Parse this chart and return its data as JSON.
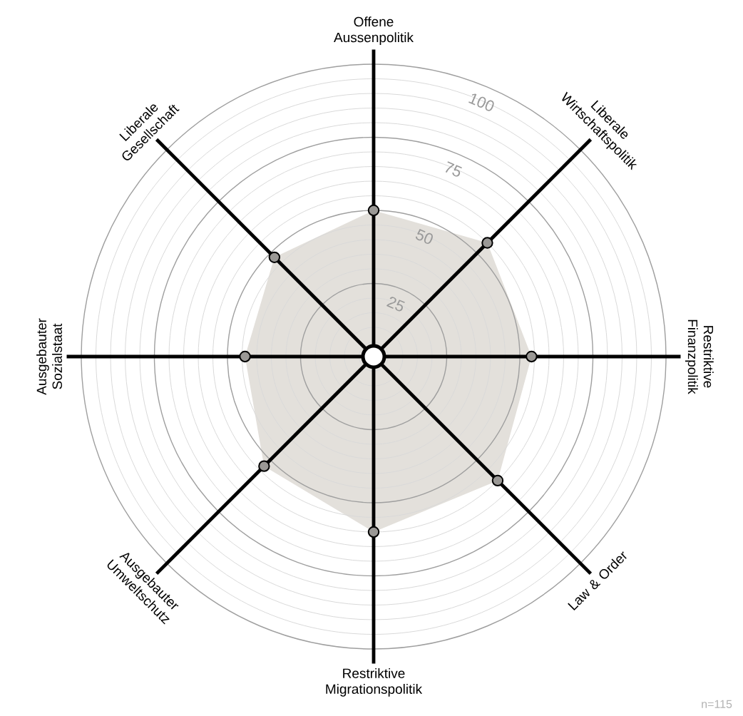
{
  "chart_data": {
    "type": "radar",
    "categories": [
      "Offene Aussenpolitik",
      "Liberale Wirtschaftspolitik",
      "Restriktive Finanzpolitik",
      "Law & Order",
      "Restriktive Migrationspolitik",
      "Ausgebauter Umweltschutz",
      "Ausgebauter Sozialstaat",
      "Liberale Gesellschaft"
    ],
    "series": [
      {
        "color": "#e3e0db",
        "values": [
          50,
          55,
          54,
          60,
          60,
          53,
          44,
          48
        ]
      }
    ],
    "ylim": [
      0,
      100
    ],
    "yticks": [
      25,
      50,
      75,
      100
    ],
    "grid": true,
    "marker": "circle",
    "annotations": [
      "n=115"
    ]
  }
}
